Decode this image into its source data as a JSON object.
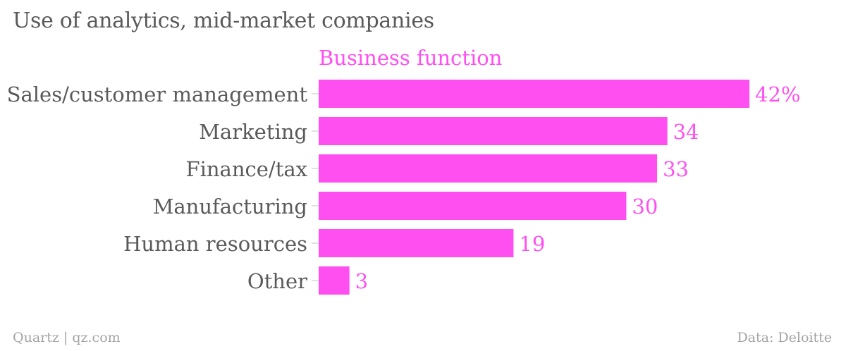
{
  "title": "Use of analytics, mid-market companies",
  "footer": {
    "left": "Quartz | qz.com",
    "right": "Data: Deloitte"
  },
  "colors": {
    "bar": "#ff4ff0",
    "accent_text": "#ff4ff0",
    "text": "#5a5a5a",
    "muted": "#a3a3a3",
    "tick": "#d9d9d9"
  },
  "chart_data": {
    "type": "bar",
    "orientation": "horizontal",
    "series_title": "Business function",
    "categories": [
      "Sales/customer management",
      "Marketing",
      "Finance/tax",
      "Manufacturing",
      "Human resources",
      "Other"
    ],
    "values": [
      42,
      34,
      33,
      30,
      19,
      3
    ],
    "value_labels": [
      "42%",
      "34",
      "33",
      "30",
      "19",
      "3"
    ],
    "xlim": [
      0,
      42
    ],
    "grid": false,
    "legend": "none"
  }
}
